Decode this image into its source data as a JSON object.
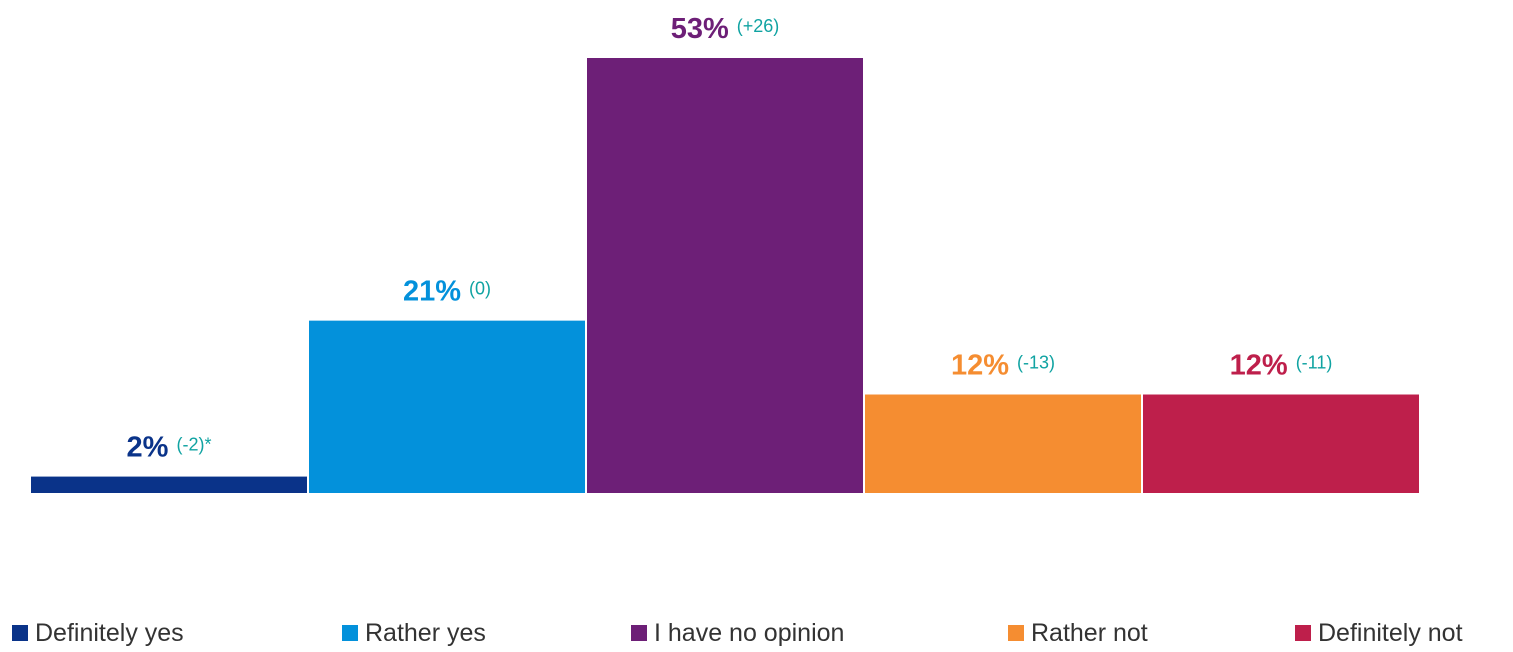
{
  "chart_data": {
    "type": "bar",
    "categories": [
      "Definitely yes",
      "Rather yes",
      "I have no opinion",
      "Rather not",
      "Definitely not"
    ],
    "values": [
      2,
      21,
      53,
      12,
      12
    ],
    "value_labels": [
      "2%",
      "21%",
      "53%",
      "12%",
      "12%"
    ],
    "change_labels": [
      "(-2)*",
      "(0)",
      "(+26)",
      "(-13)",
      "(-11)"
    ],
    "colors": [
      "#0a3389",
      "#0391db",
      "#6d1f77",
      "#f58d31",
      "#be1f4b"
    ],
    "change_color": "#10a3a2",
    "ylim": [
      0,
      53
    ],
    "grid": false,
    "legend_position": "bottom"
  },
  "legend": {
    "items": [
      {
        "label": "Definitely yes",
        "color": "#0a3389"
      },
      {
        "label": "Rather yes",
        "color": "#0391db"
      },
      {
        "label": "I have no opinion",
        "color": "#6d1f77"
      },
      {
        "label": "Rather not",
        "color": "#f58d31"
      },
      {
        "label": "Definitely not",
        "color": "#be1f4b"
      }
    ]
  }
}
